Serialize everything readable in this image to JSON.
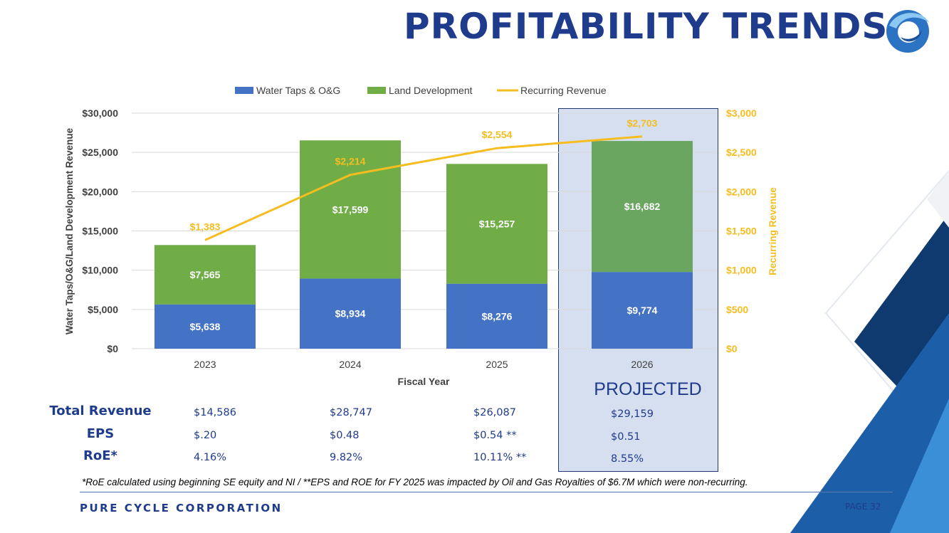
{
  "title": "PROFITABILITY TRENDS",
  "projected_label": "PROJECTED",
  "footer": {
    "company": "PURE CYCLE CORPORATION",
    "page": "PAGE 32",
    "footnote": "*RoE calculated using beginning SE equity and NI / **EPS and ROE for FY 2025 was impacted by Oil and Gas Royalties of $6.7M which were non-recurring."
  },
  "colors": {
    "water": "#4472c4",
    "land": "#70ad47",
    "land_projected": "#6aa660",
    "recurring": "#f5bd1f",
    "navy": "#1f3b8c"
  },
  "table": {
    "rows": [
      {
        "label": "Total Revenue",
        "values": [
          "$14,586",
          "$28,747",
          "$26,087",
          "$29,159"
        ]
      },
      {
        "label": "EPS",
        "values": [
          "$.20",
          "$0.48",
          "$0.54 **",
          "$0.51"
        ]
      },
      {
        "label": "RoE*",
        "values": [
          "4.16%",
          "9.82%",
          "10.11%  **",
          "8.55%"
        ]
      }
    ]
  },
  "chart_data": {
    "type": "bar",
    "stacked": true,
    "categories": [
      "2023",
      "2024",
      "2025",
      "2026"
    ],
    "series": [
      {
        "name": "Water Taps & O&G",
        "type": "bar",
        "axis": "left",
        "values": [
          5638,
          8934,
          8276,
          9774
        ],
        "labels": [
          "$5,638",
          "$8,934",
          "$8,276",
          "$9,774"
        ]
      },
      {
        "name": "Land Development",
        "type": "bar",
        "axis": "left",
        "values": [
          7565,
          17599,
          15257,
          16682
        ],
        "labels": [
          "$7,565",
          "$17,599",
          "$15,257",
          "$16,682"
        ]
      },
      {
        "name": "Recurring Revenue",
        "type": "line",
        "axis": "right",
        "values": [
          1383,
          2214,
          2554,
          2703
        ],
        "labels": [
          "$1,383",
          "$2,214",
          "$2,554",
          "$2,703"
        ]
      }
    ],
    "xlabel": "Fiscal Year",
    "ylabel": "Water Taps/O&G/Land Development Revenue",
    "y2label": "Recurring Revenue",
    "ylim": [
      0,
      30000
    ],
    "y2lim": [
      0,
      3000
    ],
    "yticks": [
      "$0",
      "$5,000",
      "$10,000",
      "$15,000",
      "$20,000",
      "$25,000",
      "$30,000"
    ],
    "y2ticks": [
      "$0",
      "$500",
      "$1,000",
      "$1,500",
      "$2,000",
      "$2,500",
      "$3,000"
    ],
    "grid": true,
    "legend_position": "top"
  }
}
